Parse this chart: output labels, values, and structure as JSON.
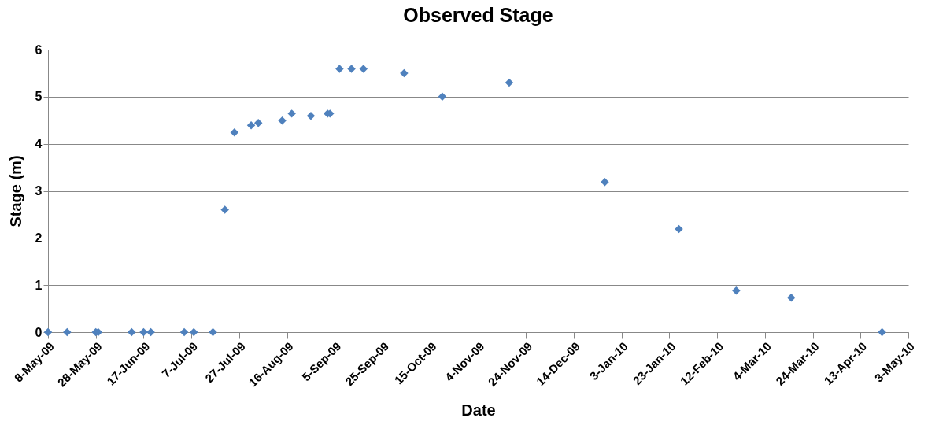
{
  "chart_data": {
    "type": "scatter",
    "title": "Observed Stage",
    "xlabel": "Date",
    "ylabel": "Stage (m)",
    "x": [
      "2009-05-08",
      "2009-05-16",
      "2009-05-28",
      "2009-05-29",
      "2009-06-12",
      "2009-06-17",
      "2009-06-20",
      "2009-07-04",
      "2009-07-08",
      "2009-07-16",
      "2009-07-21",
      "2009-07-25",
      "2009-08-01",
      "2009-08-04",
      "2009-08-14",
      "2009-08-18",
      "2009-08-26",
      "2009-09-02",
      "2009-09-03",
      "2009-09-07",
      "2009-09-12",
      "2009-09-17",
      "2009-10-04",
      "2009-10-20",
      "2009-11-17",
      "2009-12-27",
      "2010-01-27",
      "2010-02-20",
      "2010-03-15",
      "2010-04-22"
    ],
    "series": [
      {
        "color": "#4f81bd",
        "values": [
          0,
          0,
          0,
          0,
          0,
          0,
          0,
          0,
          0,
          0,
          2.6,
          4.24,
          4.39,
          4.44,
          4.49,
          4.64,
          4.59,
          4.64,
          4.64,
          5.59,
          5.59,
          5.59,
          5.5,
          5.0,
          5.3,
          3.19,
          2.19,
          0.88,
          0.73,
          0
        ]
      }
    ],
    "marker": "diamond",
    "grid": "y",
    "legend": false,
    "xlim": [
      "2009-05-08",
      "2010-05-03"
    ],
    "xticks": [
      {
        "value": "2009-05-08",
        "label": "8-May-09"
      },
      {
        "value": "2009-05-28",
        "label": "28-May-09"
      },
      {
        "value": "2009-06-17",
        "label": "17-Jun-09"
      },
      {
        "value": "2009-07-07",
        "label": "7-Jul-09"
      },
      {
        "value": "2009-07-27",
        "label": "27-Jul-09"
      },
      {
        "value": "2009-08-16",
        "label": "16-Aug-09"
      },
      {
        "value": "2009-09-05",
        "label": "5-Sep-09"
      },
      {
        "value": "2009-09-25",
        "label": "25-Sep-09"
      },
      {
        "value": "2009-10-15",
        "label": "15-Oct-09"
      },
      {
        "value": "2009-11-04",
        "label": "4-Nov-09"
      },
      {
        "value": "2009-11-24",
        "label": "24-Nov-09"
      },
      {
        "value": "2009-12-14",
        "label": "14-Dec-09"
      },
      {
        "value": "2010-01-03",
        "label": "3-Jan-10"
      },
      {
        "value": "2010-01-23",
        "label": "23-Jan-10"
      },
      {
        "value": "2010-02-12",
        "label": "12-Feb-10"
      },
      {
        "value": "2010-03-04",
        "label": "4-Mar-10"
      },
      {
        "value": "2010-03-24",
        "label": "24-Mar-10"
      },
      {
        "value": "2010-04-13",
        "label": "13-Apr-10"
      },
      {
        "value": "2010-05-03",
        "label": "3-May-10"
      }
    ],
    "ylim": [
      0,
      6
    ],
    "yticks": [
      0,
      1,
      2,
      3,
      4,
      5,
      6
    ]
  }
}
